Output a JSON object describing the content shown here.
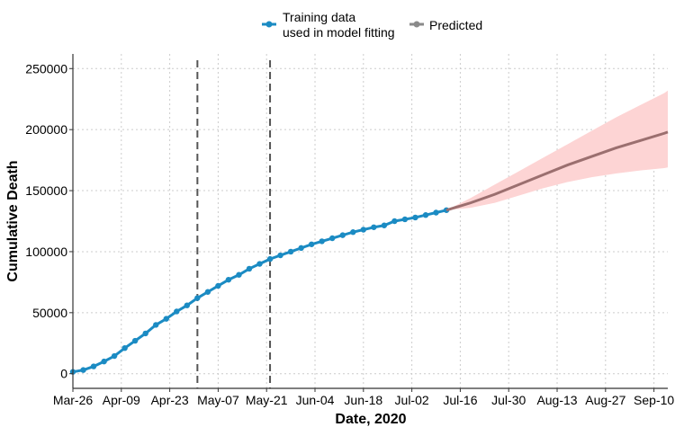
{
  "chart_data": {
    "type": "line",
    "xlabel": "Date, 2020",
    "ylabel": "Cumulative Death",
    "x_ticks": [
      "Mar-26",
      "Apr-09",
      "Apr-23",
      "May-07",
      "May-21",
      "Jun-04",
      "Jun-18",
      "Jul-02",
      "Jul-16",
      "Jul-30",
      "Aug-13",
      "Aug-27",
      "Sep-10"
    ],
    "y_ticks": [
      0,
      50000,
      100000,
      150000,
      200000,
      250000
    ],
    "xlim": [
      "2020-03-26",
      "2020-09-14"
    ],
    "ylim": [
      -12000,
      262000
    ],
    "grid": true,
    "legend_position": "top",
    "vertical_lines": [
      "2020-05-01",
      "2020-05-22"
    ],
    "colors": {
      "training": "#1b8bc3",
      "predicted": "#8a8a8a",
      "predicted_line": "#9b6f6f",
      "band": "#fdd4d4",
      "vline": "#555555",
      "grid": "#cccccc"
    },
    "series": [
      {
        "name": "Training data\nused in model fitting",
        "style": "points",
        "points": [
          [
            "2020-03-26",
            1500
          ],
          [
            "2020-03-29",
            3000
          ],
          [
            "2020-04-01",
            6000
          ],
          [
            "2020-04-04",
            10000
          ],
          [
            "2020-04-07",
            14500
          ],
          [
            "2020-04-10",
            21000
          ],
          [
            "2020-04-13",
            27000
          ],
          [
            "2020-04-16",
            33000
          ],
          [
            "2020-04-19",
            40000
          ],
          [
            "2020-04-22",
            45000
          ],
          [
            "2020-04-25",
            51000
          ],
          [
            "2020-04-28",
            56000
          ],
          [
            "2020-05-01",
            62000
          ],
          [
            "2020-05-04",
            67000
          ],
          [
            "2020-05-07",
            72000
          ],
          [
            "2020-05-10",
            77000
          ],
          [
            "2020-05-13",
            81000
          ],
          [
            "2020-05-16",
            86000
          ],
          [
            "2020-05-19",
            90000
          ],
          [
            "2020-05-22",
            94000
          ],
          [
            "2020-05-25",
            97000
          ],
          [
            "2020-05-28",
            100000
          ],
          [
            "2020-05-31",
            103000
          ],
          [
            "2020-06-03",
            106000
          ],
          [
            "2020-06-06",
            108500
          ],
          [
            "2020-06-09",
            111000
          ],
          [
            "2020-06-12",
            113500
          ],
          [
            "2020-06-15",
            116000
          ],
          [
            "2020-06-18",
            118000
          ],
          [
            "2020-06-21",
            120000
          ],
          [
            "2020-06-24",
            121500
          ],
          [
            "2020-06-27",
            125000
          ],
          [
            "2020-06-30",
            126500
          ],
          [
            "2020-07-03",
            128000
          ],
          [
            "2020-07-06",
            130000
          ],
          [
            "2020-07-09",
            132000
          ],
          [
            "2020-07-12",
            134000
          ]
        ]
      },
      {
        "name": "Predicted",
        "style": "line",
        "points": [
          [
            "2020-07-12",
            134000
          ],
          [
            "2020-07-19",
            140000
          ],
          [
            "2020-07-26",
            147000
          ],
          [
            "2020-08-02",
            155000
          ],
          [
            "2020-08-09",
            163000
          ],
          [
            "2020-08-16",
            171000
          ],
          [
            "2020-08-23",
            178000
          ],
          [
            "2020-08-30",
            185000
          ],
          [
            "2020-09-06",
            191000
          ],
          [
            "2020-09-13",
            197000
          ],
          [
            "2020-09-14",
            198000
          ]
        ],
        "lower": [
          134000,
          136000,
          140000,
          146000,
          152000,
          157000,
          161000,
          164000,
          166500,
          168500,
          169000
        ],
        "upper": [
          134000,
          144000,
          155000,
          166000,
          177000,
          188000,
          199000,
          210000,
          220000,
          230000,
          232000
        ]
      }
    ]
  }
}
